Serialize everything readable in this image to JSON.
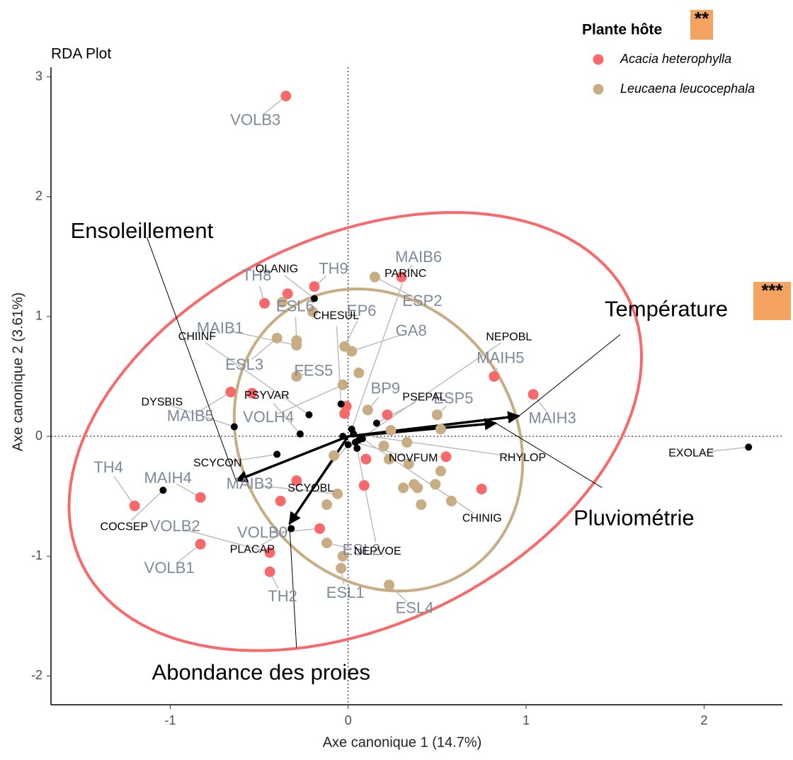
{
  "chart_data": {
    "type": "scatter",
    "title": "RDA Plot",
    "x_label": "Axe canonique 1 (14.7%)",
    "y_label": "Axe canonique 2 (3.61%)",
    "xlim": [
      -1.67,
      2.44
    ],
    "ylim": [
      -2.24,
      3.08
    ],
    "xticks": [
      -1,
      0,
      1,
      2
    ],
    "yticks": [
      -2,
      -1,
      0,
      1,
      2,
      3
    ],
    "zero_lines": true,
    "legend_title": "Plante hôte",
    "legend_position": "top-right",
    "series": [
      {
        "name": "Acacia heterophylla",
        "color": "#f8696b",
        "label_color": "#7d8a9c",
        "x": [
          -0.35,
          -0.47,
          -0.34,
          -0.19,
          0.3,
          0.82,
          1.04,
          -0.66,
          -0.54,
          -0.01,
          -0.02,
          0.22,
          0.1,
          -0.29,
          -0.38,
          0.09,
          0.55,
          0.75,
          -0.83,
          -1.2,
          -0.83,
          -0.44,
          -0.16,
          -0.44
        ],
        "y": [
          2.84,
          1.11,
          1.19,
          1.25,
          1.33,
          0.5,
          0.35,
          0.37,
          0.36,
          0.25,
          0.19,
          0.18,
          -0.19,
          -0.37,
          -0.54,
          -0.41,
          -0.17,
          -0.44,
          -0.51,
          -0.58,
          -0.9,
          -0.97,
          -0.77,
          -1.13
        ],
        "labels": [
          "VOLB3",
          "TH8",
          null,
          "TH9",
          "MAIB6",
          "MAIH5",
          "MAIH3",
          "MAIB5",
          null,
          null,
          null,
          null,
          null,
          null,
          null,
          null,
          null,
          null,
          "MAIH4",
          "TH4",
          "VOLB1",
          "VOLB2",
          "VOLB0",
          "TH2"
        ],
        "ellipse": {
          "cx": 0.04,
          "cy": 0.04,
          "a": 2.01,
          "b": 1.375,
          "angle": 55.3
        }
      },
      {
        "name": "Leucaena leucocephala",
        "color": "#c8ad84",
        "label_color": "#7d8a9c",
        "x": [
          0.15,
          -0.2,
          -0.37,
          -0.4,
          -0.29,
          -0.29,
          -0.29,
          -0.02,
          0.02,
          0.06,
          -0.03,
          0.11,
          0.5,
          0.52,
          0.24,
          0.33,
          0.2,
          -0.08,
          0.23,
          0.34,
          0.52,
          0.37,
          0.39,
          0.31,
          0.49,
          0.41,
          0.58,
          -0.06,
          -0.12,
          -0.12,
          -0.03,
          -0.04,
          0.23
        ],
        "y": [
          1.33,
          1.04,
          1.12,
          0.82,
          0.8,
          0.76,
          0.5,
          0.75,
          0.71,
          0.53,
          0.43,
          0.22,
          0.18,
          0.06,
          0.05,
          -0.05,
          -0.08,
          -0.16,
          -0.19,
          -0.23,
          -0.29,
          -0.4,
          -0.43,
          -0.43,
          -0.4,
          -0.57,
          -0.54,
          -0.48,
          -0.57,
          -0.89,
          -1.0,
          -1.1,
          -1.24
        ],
        "labels": [
          "ESP2",
          null,
          null,
          "ESL3",
          "ESL6",
          "MAIB1",
          "FES5",
          "EP6",
          "GA8",
          null,
          "VOLH4",
          "BP9",
          "ESP5",
          null,
          null,
          null,
          null,
          null,
          null,
          null,
          null,
          null,
          null,
          null,
          null,
          null,
          null,
          "MAIB3",
          null,
          "ESL2",
          null,
          "ESL1",
          "ESL4"
        ],
        "ellipse": {
          "cx": 0.17,
          "cy": -0.03,
          "a": 1.27,
          "b": 0.796,
          "angle": 98.9
        }
      },
      {
        "color": "#000000",
        "label_color": "#000000",
        "x": [
          -0.19,
          -0.22,
          -0.64,
          -0.27,
          -0.04,
          0.16,
          -0.4,
          -1.04,
          -0.32,
          2.25,
          0.02,
          0.04,
          0.0,
          0.06,
          0.05,
          0.08,
          0.03,
          -0.03
        ],
        "y": [
          1.15,
          0.18,
          0.08,
          0.02,
          0.27,
          0.11,
          -0.15,
          -0.45,
          -0.77,
          -0.09,
          0.06,
          -0.05,
          -0.07,
          -0.03,
          -0.1,
          -0.02,
          0.02,
          0.0
        ],
        "labels": [
          "OLANIG",
          "CHIINF",
          "DYSBIS",
          "PSYVAR",
          "CHESUL",
          "PSEPAL",
          "SCYCON",
          "COCSEP",
          "PLACAP",
          "EXOLAE",
          "PARINC",
          "NOVFUM",
          "SCYOBL",
          "NEPOBL",
          "NEPVOE",
          "CHINIG",
          "RHYLOP",
          null
        ]
      }
    ],
    "arrows": [
      {
        "label": "Température",
        "x": 0.96,
        "y": 0.17
      },
      {
        "label": "Pluviométrie",
        "x": 0.83,
        "y": 0.11
      },
      {
        "label": "Ensoleillement",
        "x": -0.63,
        "y": -0.37
      },
      {
        "label": "Abondance des proies",
        "x": -0.33,
        "y": -0.73
      }
    ],
    "annotations": [
      "**",
      "***"
    ]
  }
}
